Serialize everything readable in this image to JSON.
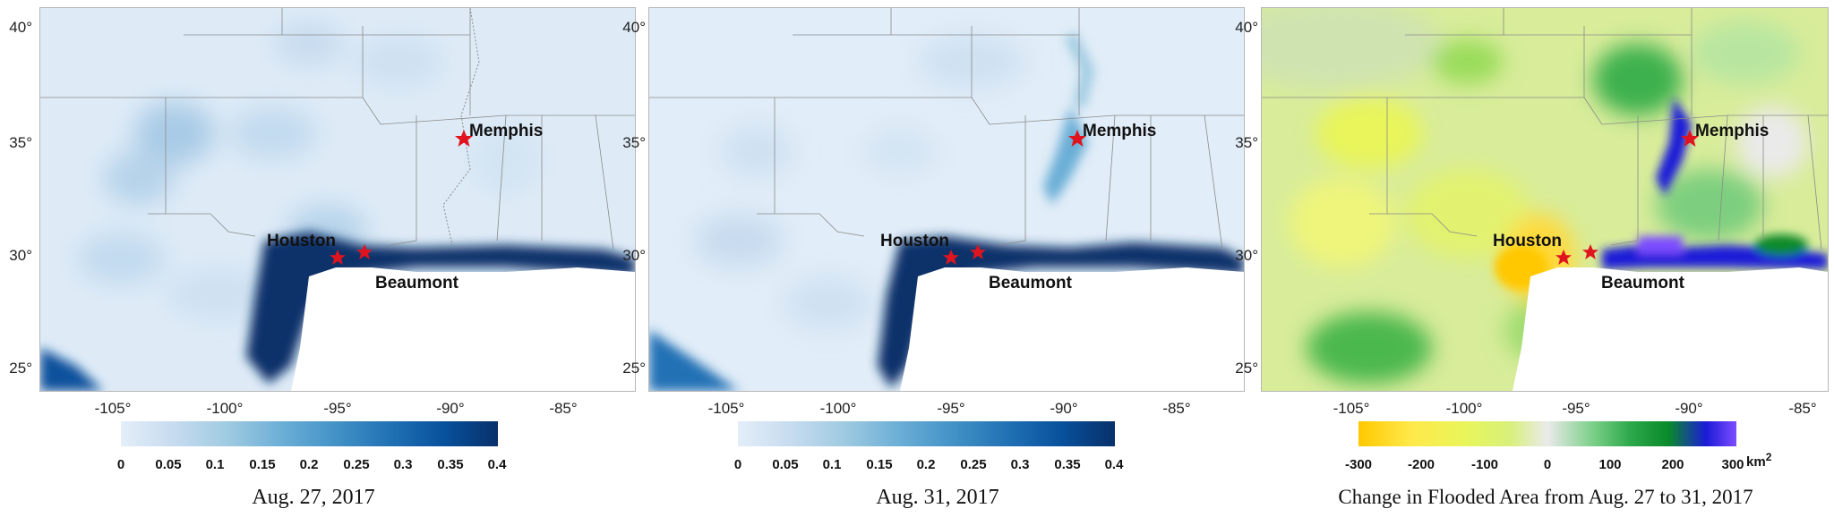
{
  "panels": [
    {
      "id": "aug27",
      "title": "Aug. 27, 2017",
      "colorbar_ticks": [
        "0",
        "0.05",
        "0.1",
        "0.15",
        "0.2",
        "0.25",
        "0.3",
        "0.35",
        "0.4"
      ],
      "colorbar_colors": [
        "#e3eef8",
        "#c6dbef",
        "#9ecae1",
        "#6baed6",
        "#4292c6",
        "#2171b5",
        "#08519c",
        "#08306b"
      ],
      "unit": ""
    },
    {
      "id": "aug31",
      "title": "Aug. 31, 2017",
      "colorbar_ticks": [
        "0",
        "0.05",
        "0.1",
        "0.15",
        "0.2",
        "0.25",
        "0.3",
        "0.35",
        "0.4"
      ],
      "colorbar_colors": [
        "#e3eef8",
        "#c6dbef",
        "#9ecae1",
        "#6baed6",
        "#4292c6",
        "#2171b5",
        "#08519c",
        "#08306b"
      ],
      "unit": ""
    },
    {
      "id": "change",
      "title": "Change in Flooded Area from Aug. 27 to 31, 2017",
      "colorbar_ticks": [
        "-300",
        "-200",
        "-100",
        "0",
        "100",
        "200",
        "300"
      ],
      "colorbar_colors": [
        "#ffc800",
        "#ffe94a",
        "#e9f55a",
        "#d7f07a",
        "#eaeaea",
        "#7bd089",
        "#2ca84a",
        "#0a8a2a",
        "#1b1bd8",
        "#7c4dff"
      ],
      "unit": "km",
      "unit_sup": "2"
    }
  ],
  "lat_ticks": [
    "40°",
    "35°",
    "30°",
    "25°"
  ],
  "lon_ticks": [
    "-105°",
    "-100°",
    "-95°",
    "-90°",
    "-85°"
  ],
  "cities": {
    "memphis": "Memphis",
    "houston": "Houston",
    "beaumont": "Beaumont"
  },
  "colors": {
    "star": "#e0141e",
    "border": "#8a8a8a",
    "land_light": "#dfe9f5"
  }
}
